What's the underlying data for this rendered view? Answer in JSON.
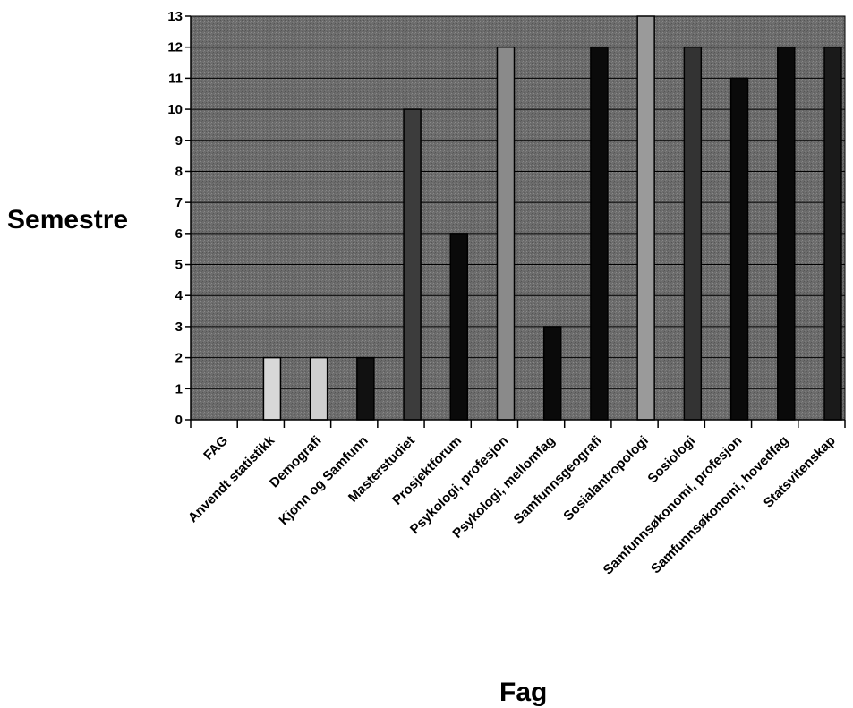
{
  "chart_data": {
    "type": "bar",
    "title": "",
    "xlabel": "Fag",
    "ylabel": "Semestre",
    "ylim": [
      0,
      13
    ],
    "yticks": [
      0,
      1,
      2,
      3,
      4,
      5,
      6,
      7,
      8,
      9,
      10,
      11,
      12,
      13
    ],
    "grid": true,
    "legend": "none",
    "categories": [
      "FAG",
      "Anvendt statistikk",
      "Demografi",
      "Kjønn og Samfunn",
      "Masterstudiet",
      "Prosjektforum",
      "Psykologi, profesjon",
      "Psykologi, mellomfag",
      "Samfunnsgeografi",
      "Sosialantropologi",
      "Sosiologi",
      "Samfunnsøkonomi, profesjon",
      "Samfunnsøkonomi, hovedfag",
      "Statsvitenskap"
    ],
    "values": [
      0,
      2,
      2,
      2,
      10,
      6,
      12,
      3,
      12,
      13,
      12,
      11,
      12,
      12
    ],
    "colors": [
      "#000000",
      "#d8d8d8",
      "#cfcfcf",
      "#111111",
      "#3c3c3c",
      "#0a0a0a",
      "#8a8a8a",
      "#0a0a0a",
      "#0a0a0a",
      "#9a9a9a",
      "#333333",
      "#0a0a0a",
      "#0a0a0a",
      "#1a1a1a"
    ],
    "plot_background": "#6e6e6e"
  }
}
